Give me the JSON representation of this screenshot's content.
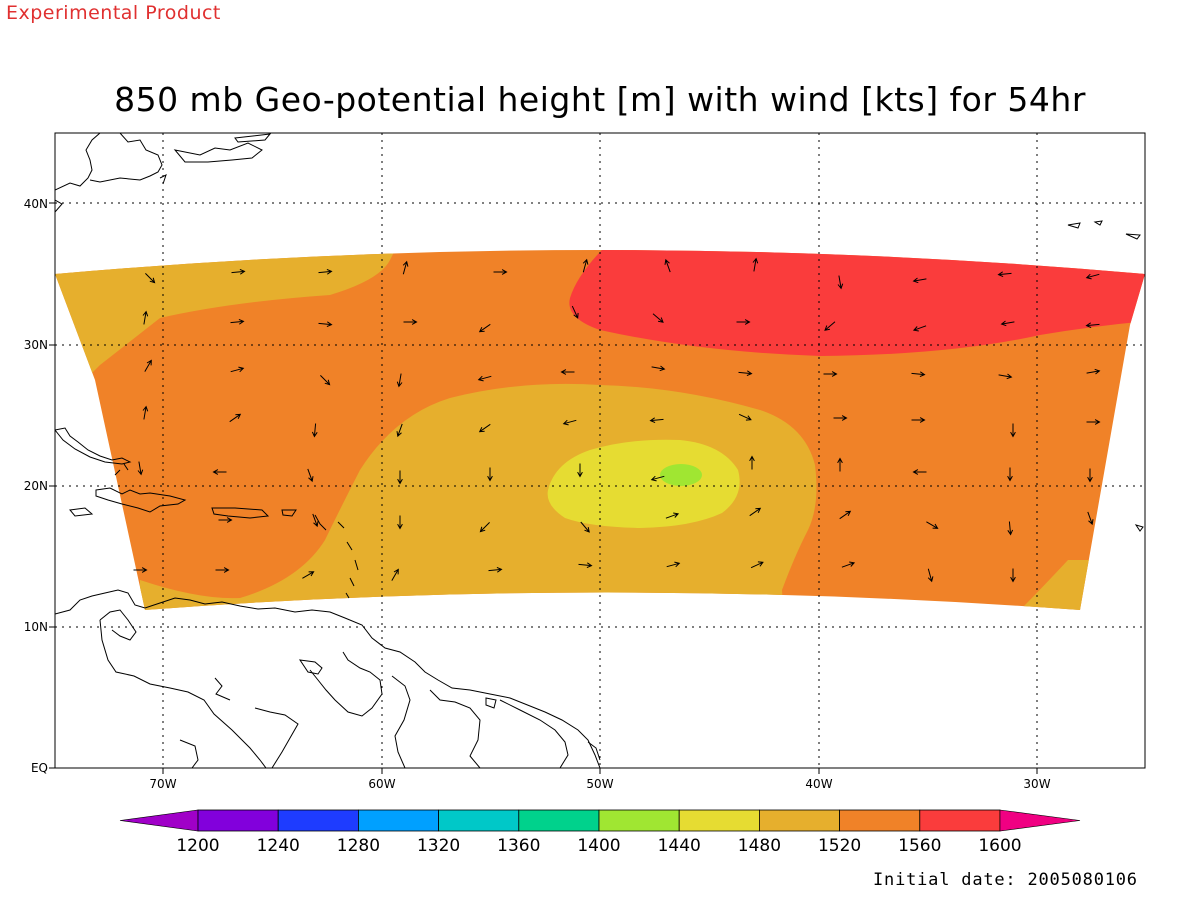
{
  "header": {
    "product_label": "Experimental Product",
    "title": "850 mb Geo-potential height [m] with wind [kts] for 54hr"
  },
  "footer": {
    "initial_date": "Initial date: 2005080106"
  },
  "map": {
    "lon_range": [
      -75,
      -25
    ],
    "lat_range": [
      0,
      45
    ],
    "lat_ticks": [
      "EQ",
      "10N",
      "20N",
      "30N",
      "40N"
    ],
    "lon_ticks": [
      "70W",
      "60W",
      "50W",
      "40W",
      "30W"
    ],
    "grid": "dotted",
    "coastlines": true
  },
  "legend": {
    "labels": [
      "1200",
      "1240",
      "1280",
      "1320",
      "1360",
      "1400",
      "1440",
      "1480",
      "1520",
      "1560",
      "1600"
    ],
    "colors": [
      "#a000c8",
      "#8200dc",
      "#1e3cff",
      "#00a0ff",
      "#00c8c8",
      "#00d28c",
      "#a0e632",
      "#e6dc32",
      "#e6af2d",
      "#f08228",
      "#fa3c3c",
      "#f00082"
    ]
  }
}
